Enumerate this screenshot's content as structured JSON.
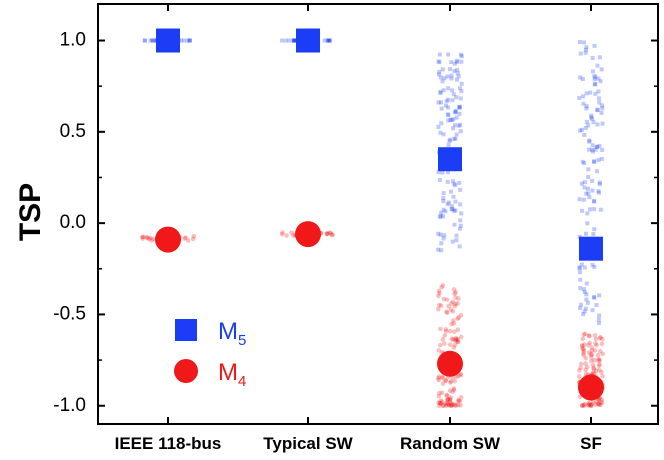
{
  "chart_data": {
    "type": "scatter",
    "title": "",
    "xlabel": "",
    "ylabel": "TSP",
    "ylim": [
      -1.1,
      1.2
    ],
    "yticks": [
      1.0,
      0.5,
      0.0,
      -0.5,
      -1.0
    ],
    "ytick_labels": [
      "1.0",
      "0.5",
      "0.0",
      "-0.5",
      "-1.0"
    ],
    "categories": [
      "IEEE 118-bus",
      "Typical SW",
      "Random SW",
      "SF"
    ],
    "legend": {
      "placement": "lower-left"
    },
    "series": [
      {
        "name": "M5",
        "label_main": "M",
        "label_sub": "5",
        "marker": "square",
        "color": "#1a3df5",
        "values": [
          1.0,
          1.0,
          0.35,
          -0.14
        ],
        "scatter_spread": [
          [
            1.0,
            1.0
          ],
          [
            1.0,
            1.0
          ],
          [
            -0.15,
            0.93
          ],
          [
            -0.55,
            1.0
          ]
        ]
      },
      {
        "name": "M4",
        "label_main": "M",
        "label_sub": "4",
        "marker": "circle",
        "color": "#f01818",
        "values": [
          -0.09,
          -0.06,
          -0.77,
          -0.9
        ],
        "scatter_spread": [
          [
            -0.1,
            -0.07
          ],
          [
            -0.07,
            -0.05
          ],
          [
            -1.0,
            -0.32
          ],
          [
            -1.0,
            -0.6
          ]
        ]
      }
    ]
  }
}
